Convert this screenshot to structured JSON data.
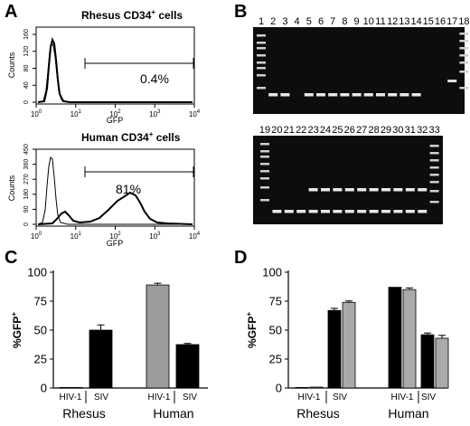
{
  "panels": {
    "A": {
      "letter": "A",
      "top": {
        "title": "Rhesus CD34+ cells",
        "title_main": "Rhesus CD34",
        "title_sup": "+",
        "title_tail": " cells",
        "ylabel": "Counts",
        "xlabel": "GFP",
        "yticks": [
          "0",
          "40",
          "80",
          "120",
          "160"
        ],
        "percent": "0.4%"
      },
      "bottom": {
        "title": "Human CD34+ cells",
        "title_main": "Human CD34",
        "title_sup": "+",
        "title_tail": " cells",
        "ylabel": "Counts",
        "xlabel": "GFP",
        "yticks": [
          "0",
          "90",
          "180",
          "270",
          "360",
          "450"
        ],
        "percent": "81%"
      },
      "xticks": [
        "10",
        "10",
        "10",
        "10",
        "10"
      ],
      "xtick_exps": [
        "0",
        "1",
        "2",
        "3",
        "4"
      ]
    },
    "B": {
      "letter": "B",
      "top_lanes": [
        "1",
        "2",
        "3",
        "4",
        "5",
        "6",
        "7",
        "8",
        "9",
        "10",
        "11",
        "12",
        "13",
        "14",
        "15",
        "16",
        "17",
        "18"
      ],
      "bottom_lanes": [
        "19",
        "20",
        "21",
        "22",
        "23",
        "24",
        "25",
        "26",
        "27",
        "28",
        "29",
        "30",
        "31",
        "32",
        "33"
      ]
    },
    "C": {
      "letter": "C"
    },
    "D": {
      "letter": "D"
    }
  },
  "chart_data": [
    {
      "panel": "C",
      "type": "bar",
      "ylabel": "%GFP+",
      "ylabel_main": "%GFP",
      "ylabel_sup": "+",
      "ylim": [
        0,
        100
      ],
      "yticks": [
        "0",
        "25",
        "50",
        "75",
        "100"
      ],
      "groups": [
        {
          "name": "Rhesus",
          "bars": [
            {
              "label": "HIV-1",
              "value": 0.5,
              "color": "#9b9b9b"
            },
            {
              "label": "SIV",
              "value": 50,
              "err": 4.5,
              "color": "#000000"
            }
          ]
        },
        {
          "name": "Human",
          "bars": [
            {
              "label": "HIV-1",
              "value": 89,
              "err": 1.5,
              "color": "#9b9b9b"
            },
            {
              "label": "SIV",
              "value": 37.5,
              "err": 1,
              "color": "#000000"
            }
          ]
        }
      ]
    },
    {
      "panel": "D",
      "type": "bar",
      "ylabel": "%GFP+",
      "ylabel_main": "%GFP",
      "ylabel_sup": "+",
      "ylim": [
        0,
        100
      ],
      "yticks": [
        "0",
        "25",
        "50",
        "75",
        "100"
      ],
      "groups": [
        {
          "name": "Rhesus",
          "bars": [
            {
              "label": "HIV-1",
              "value": 0.5,
              "color": "#000000"
            },
            {
              "label": "HIV-1",
              "value": 0.8,
              "color": "#aaaaaa"
            },
            {
              "label": "SIV",
              "value": 67,
              "err": 1.8,
              "color": "#000000"
            },
            {
              "label": "SIV",
              "value": 74,
              "err": 1.2,
              "color": "#aaaaaa"
            }
          ]
        },
        {
          "name": "Human",
          "bars": [
            {
              "label": "HIV-1",
              "value": 87,
              "color": "#000000"
            },
            {
              "label": "HIV-1",
              "value": 85,
              "err": 1.5,
              "color": "#aaaaaa"
            },
            {
              "label": "SIV",
              "value": 46,
              "err": 1.5,
              "color": "#000000"
            },
            {
              "label": "SIV",
              "value": 43,
              "err": 2.5,
              "color": "#aaaaaa"
            }
          ]
        }
      ]
    }
  ]
}
